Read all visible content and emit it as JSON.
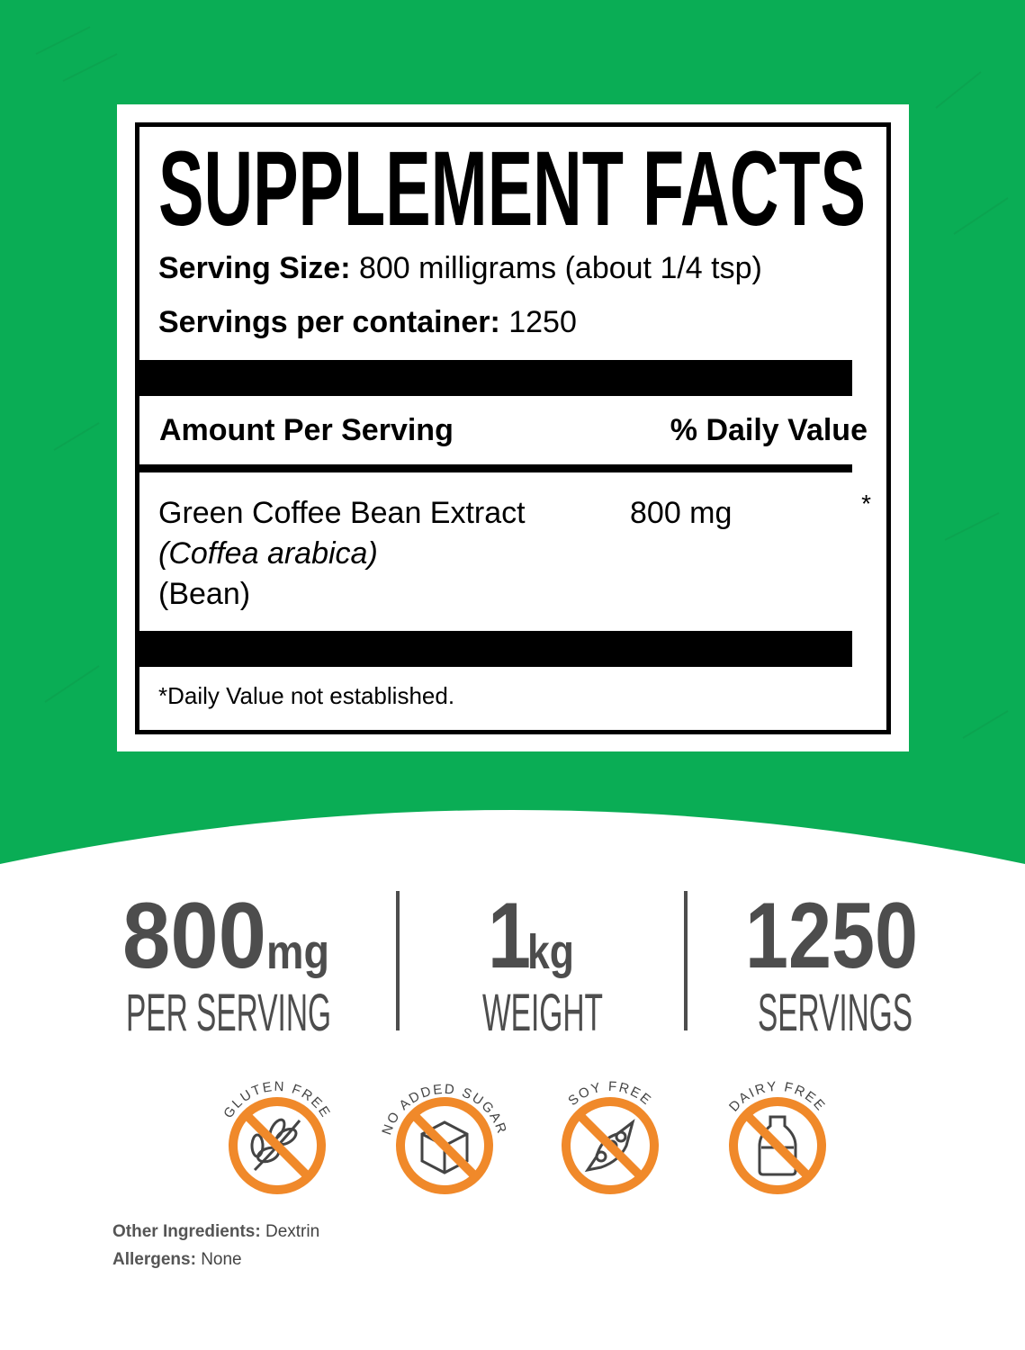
{
  "colors": {
    "background_green": "#0aad55",
    "icon_orange": "#f0892a",
    "stat_gray": "#4d4d4d"
  },
  "facts": {
    "title": "SUPPLEMENT FACTS",
    "serving_size_label": "Serving Size:",
    "serving_size_value": "800 milligrams (about 1/4 tsp)",
    "servings_label": "Servings per container:",
    "servings_value": "1250",
    "amount_header": "Amount Per Serving",
    "dv_header": "% Daily Value",
    "ingredient": {
      "name": "Green Coffee Bean Extract",
      "latin": "(Coffea arabica)",
      "part": "(Bean)",
      "amount": "800 mg",
      "dv": "*"
    },
    "footnote": "*Daily Value not established."
  },
  "stats": [
    {
      "value": "800",
      "unit": "mg",
      "label": "PER SERVING"
    },
    {
      "value": "1",
      "unit": "kg",
      "label": "WEIGHT"
    },
    {
      "value": "1250",
      "unit": "",
      "label": "SERVINGS"
    }
  ],
  "badges": [
    {
      "text": "GLUTEN FREE",
      "icon": "wheat-icon"
    },
    {
      "text": "NO ADDED SUGAR",
      "icon": "sugar-cube-icon"
    },
    {
      "text": "SOY FREE",
      "icon": "soybean-icon"
    },
    {
      "text": "DAIRY FREE",
      "icon": "milk-bottle-icon"
    }
  ],
  "footer": {
    "other_label": "Other Ingredients:",
    "other_value": "Dextrin",
    "allergens_label": "Allergens:",
    "allergens_value": "None"
  }
}
